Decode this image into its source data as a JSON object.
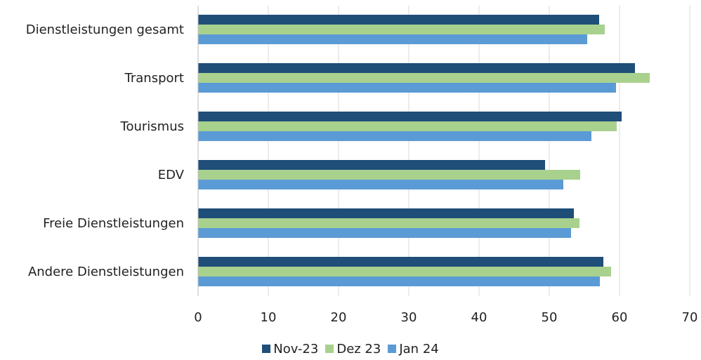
{
  "chart_data": {
    "type": "bar",
    "orientation": "horizontal",
    "title": "",
    "xlabel": "",
    "ylabel": "",
    "categories": [
      "Dienstleistungen gesamt",
      "Transport",
      "Tourismus",
      "EDV",
      "Freie Dienstleistungen",
      "Andere Dienstleistungen"
    ],
    "series": [
      {
        "name": "Nov-23",
        "color": "#1f4e79",
        "values": [
          57.1,
          62.2,
          60.3,
          49.4,
          53.5,
          57.7
        ]
      },
      {
        "name": "Dez 23",
        "color": "#a9d18e",
        "values": [
          57.9,
          64.3,
          59.6,
          54.4,
          54.3,
          58.8
        ]
      },
      {
        "name": "Jan 24",
        "color": "#5b9bd5",
        "values": [
          55.4,
          59.5,
          56.0,
          52.0,
          53.1,
          57.2
        ]
      }
    ],
    "xlim": [
      0,
      70
    ],
    "xticks": [
      "0",
      "10",
      "20",
      "30",
      "40",
      "50",
      "60",
      "70"
    ],
    "grid": true,
    "legend_position": "bottom"
  }
}
